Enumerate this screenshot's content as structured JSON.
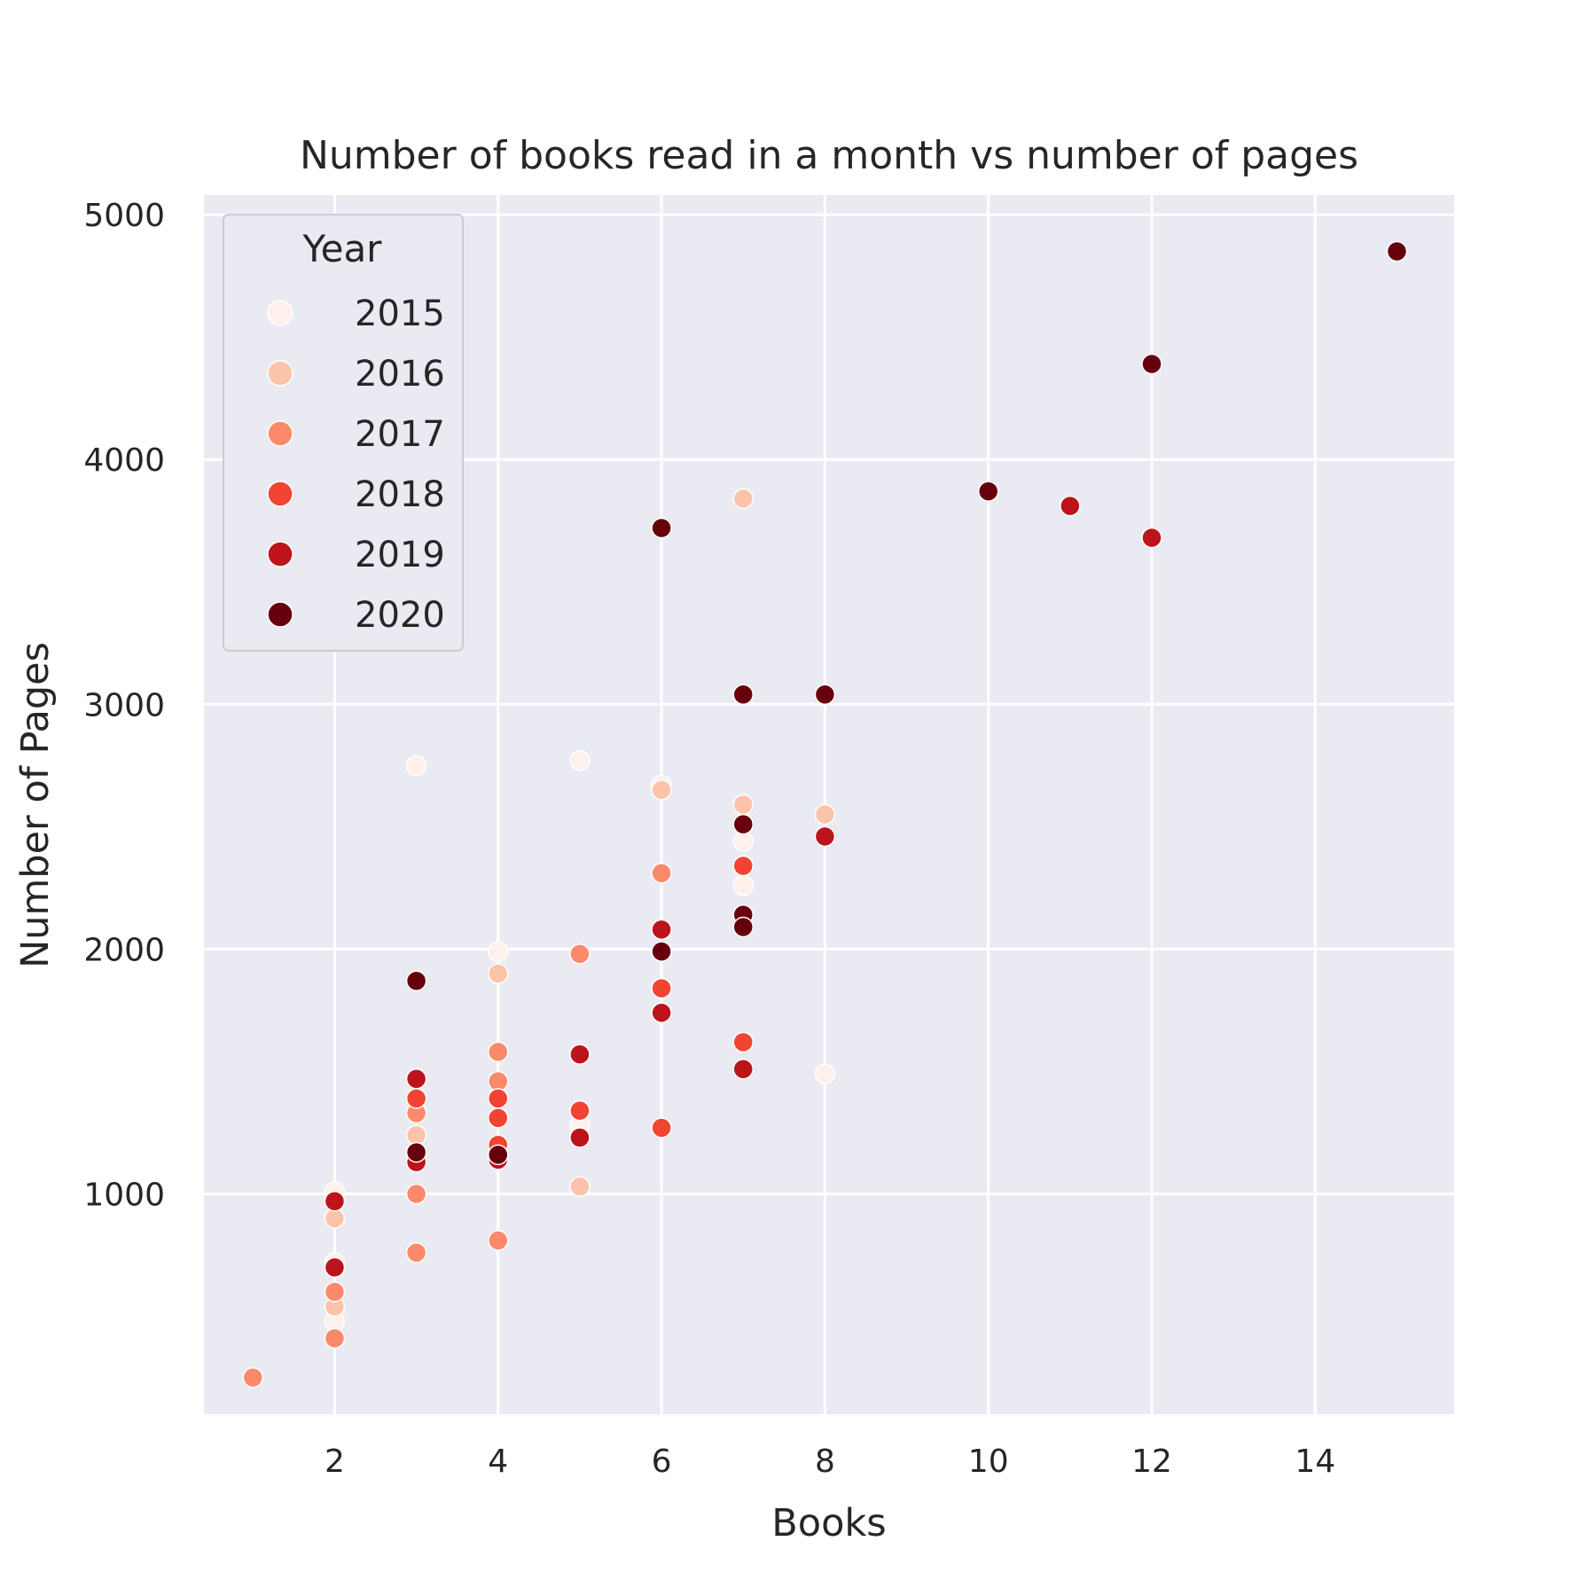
{
  "chart_data": {
    "type": "scatter",
    "title": "Number of books read in a month vs number of pages",
    "xlabel": "Books",
    "ylabel": "Number of Pages",
    "xlim": [
      0.4,
      15.7
    ],
    "ylim": [
      100,
      5080
    ],
    "xticks": [
      2,
      4,
      6,
      8,
      10,
      12,
      14
    ],
    "yticks": [
      1000,
      2000,
      3000,
      4000,
      5000
    ],
    "grid": true,
    "legend": {
      "title": "Year",
      "placement": "top-left"
    },
    "series": [
      {
        "name": "2015",
        "color": "#fff0eb",
        "points": [
          [
            2,
            1010
          ],
          [
            2,
            720
          ],
          [
            2,
            480
          ],
          [
            3,
            2750
          ],
          [
            4,
            1990
          ],
          [
            5,
            2770
          ],
          [
            5,
            1280
          ],
          [
            6,
            2670
          ],
          [
            7,
            2440
          ],
          [
            7,
            2260
          ],
          [
            8,
            1490
          ]
        ]
      },
      {
        "name": "2016",
        "color": "#fcc3ab",
        "points": [
          [
            2,
            900
          ],
          [
            2,
            540
          ],
          [
            3,
            1240
          ],
          [
            4,
            1900
          ],
          [
            5,
            1030
          ],
          [
            6,
            2650
          ],
          [
            7,
            3840
          ],
          [
            7,
            2590
          ],
          [
            8,
            2550
          ]
        ]
      },
      {
        "name": "2017",
        "color": "#fc8a6a",
        "points": [
          [
            1,
            250
          ],
          [
            2,
            600
          ],
          [
            2,
            410
          ],
          [
            3,
            1330
          ],
          [
            3,
            1000
          ],
          [
            3,
            760
          ],
          [
            4,
            1580
          ],
          [
            4,
            1460
          ],
          [
            4,
            810
          ],
          [
            5,
            1980
          ],
          [
            5,
            1340
          ],
          [
            6,
            2310
          ]
        ]
      },
      {
        "name": "2018",
        "color": "#f14432",
        "points": [
          [
            3,
            1390
          ],
          [
            4,
            1390
          ],
          [
            4,
            1310
          ],
          [
            4,
            1200
          ],
          [
            5,
            1340
          ],
          [
            6,
            1840
          ],
          [
            6,
            1270
          ],
          [
            7,
            2340
          ],
          [
            7,
            1620
          ],
          [
            11,
            3810
          ]
        ]
      },
      {
        "name": "2019",
        "color": "#bc141a",
        "points": [
          [
            2,
            970
          ],
          [
            2,
            700
          ],
          [
            3,
            1470
          ],
          [
            3,
            1130
          ],
          [
            4,
            1140
          ],
          [
            5,
            1570
          ],
          [
            5,
            1230
          ],
          [
            6,
            2080
          ],
          [
            6,
            1740
          ],
          [
            7,
            1510
          ],
          [
            8,
            2460
          ],
          [
            11,
            3810
          ],
          [
            12,
            3680
          ]
        ]
      },
      {
        "name": "2020",
        "color": "#67000d",
        "points": [
          [
            3,
            1870
          ],
          [
            3,
            1170
          ],
          [
            4,
            1160
          ],
          [
            6,
            3720
          ],
          [
            6,
            1990
          ],
          [
            7,
            3040
          ],
          [
            7,
            2510
          ],
          [
            7,
            2140
          ],
          [
            7,
            2090
          ],
          [
            8,
            3040
          ],
          [
            10,
            3870
          ],
          [
            12,
            4390
          ],
          [
            15,
            4850
          ]
        ]
      }
    ]
  }
}
